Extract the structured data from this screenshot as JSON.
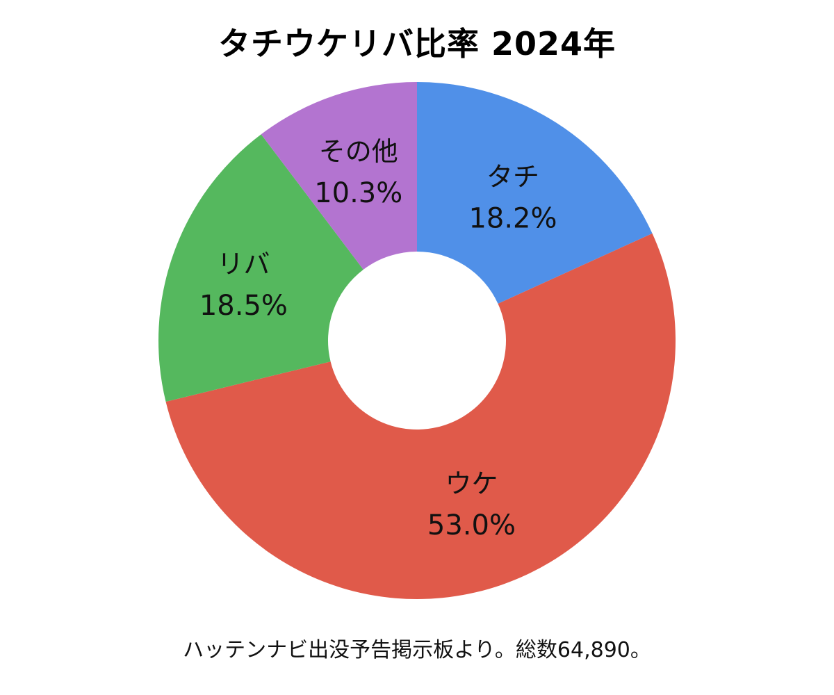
{
  "chart_data": {
    "type": "pie",
    "title": "タチウケリバ比率 2024年",
    "donut": true,
    "slices": [
      {
        "label": "タチ",
        "percent_label": "18.2%",
        "value": 18.2,
        "color": "#5090e8"
      },
      {
        "label": "ウケ",
        "percent_label": "53.0%",
        "value": 53.0,
        "color": "#e05a4a"
      },
      {
        "label": "リバ",
        "percent_label": "18.5%",
        "value": 18.5,
        "color": "#55b85e"
      },
      {
        "label": "その他",
        "percent_label": "10.3%",
        "value": 10.3,
        "color": "#b374d0"
      }
    ],
    "note": "ハッテンナビ出没予告掲示板より。総数64,890。"
  }
}
